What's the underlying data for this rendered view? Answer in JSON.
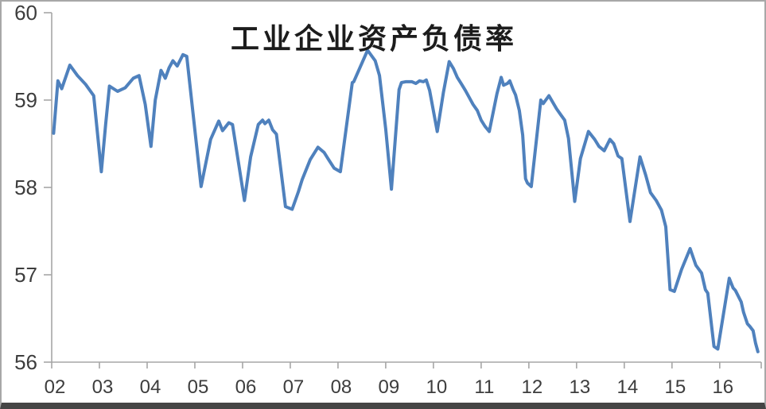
{
  "chart_data": {
    "type": "line",
    "title": "工业企业资产负债率",
    "xlabel": "",
    "ylabel": "",
    "xlim": [
      2002,
      2016.87
    ],
    "ylim": [
      56,
      60
    ],
    "y_ticks": [
      60,
      59,
      58,
      57,
      56
    ],
    "x_ticks": [
      2002,
      2003,
      2004,
      2005,
      2006,
      2007,
      2008,
      2009,
      2010,
      2011,
      2012,
      2013,
      2014,
      2015,
      2016
    ],
    "x_tick_labels": [
      "02",
      "03",
      "04",
      "05",
      "06",
      "07",
      "08",
      "09",
      "10",
      "11",
      "12",
      "13",
      "14",
      "15",
      "16"
    ],
    "grid": false,
    "legend": false,
    "line_color": "#4f81bd",
    "axis_color": "#a6a6a6",
    "tick_label_color": "#3d3d3d",
    "title_color": "#1c1c1c",
    "series": [
      {
        "name": "工业企业资产负债率",
        "x": [
          2002.04,
          2002.13,
          2002.21,
          2002.38,
          2002.54,
          2002.71,
          2002.88,
          2003.04,
          2003.13,
          2003.21,
          2003.38,
          2003.54,
          2003.71,
          2003.83,
          2003.96,
          2004.08,
          2004.17,
          2004.29,
          2004.38,
          2004.46,
          2004.54,
          2004.63,
          2004.75,
          2004.83,
          2005.13,
          2005.33,
          2005.5,
          2005.58,
          2005.71,
          2005.79,
          2006.04,
          2006.17,
          2006.33,
          2006.42,
          2006.47,
          2006.55,
          2006.63,
          2006.71,
          2006.9,
          2007.04,
          2007.17,
          2007.25,
          2007.42,
          2007.58,
          2007.71,
          2007.79,
          2007.92,
          2008.05,
          2008.3,
          2008.33,
          2008.62,
          2008.78,
          2008.87,
          2009.0,
          2009.12,
          2009.28,
          2009.33,
          2009.42,
          2009.55,
          2009.63,
          2009.71,
          2009.79,
          2009.85,
          2009.92,
          2010.08,
          2010.21,
          2010.33,
          2010.42,
          2010.5,
          2010.58,
          2010.67,
          2010.75,
          2010.83,
          2010.92,
          2011.0,
          2011.08,
          2011.17,
          2011.33,
          2011.42,
          2011.47,
          2011.55,
          2011.6,
          2011.67,
          2011.72,
          2011.8,
          2011.87,
          2011.93,
          2011.97,
          2012.05,
          2012.25,
          2012.3,
          2012.42,
          2012.58,
          2012.67,
          2012.75,
          2012.83,
          2012.96,
          2013.08,
          2013.25,
          2013.38,
          2013.47,
          2013.58,
          2013.7,
          2013.78,
          2013.87,
          2013.95,
          2014.12,
          2014.33,
          2014.45,
          2014.55,
          2014.67,
          2014.78,
          2014.87,
          2014.96,
          2015.05,
          2015.2,
          2015.38,
          2015.5,
          2015.62,
          2015.7,
          2015.75,
          2015.88,
          2015.96,
          2016.2,
          2016.28,
          2016.33,
          2016.45,
          2016.5,
          2016.58,
          2016.63,
          2016.7,
          2016.75,
          2016.8
        ],
        "y": [
          58.62,
          59.22,
          59.13,
          59.4,
          59.28,
          59.18,
          59.05,
          58.18,
          58.72,
          59.16,
          59.1,
          59.14,
          59.25,
          59.28,
          58.95,
          58.47,
          59.0,
          59.34,
          59.25,
          59.37,
          59.45,
          59.39,
          59.52,
          59.5,
          58.01,
          58.55,
          58.76,
          58.65,
          58.74,
          58.72,
          57.85,
          58.35,
          58.72,
          58.77,
          58.73,
          58.77,
          58.66,
          58.61,
          57.78,
          57.75,
          57.95,
          58.09,
          58.32,
          58.46,
          58.4,
          58.33,
          58.22,
          58.18,
          59.2,
          59.21,
          59.57,
          59.45,
          59.28,
          58.67,
          57.98,
          59.12,
          59.2,
          59.21,
          59.21,
          59.19,
          59.22,
          59.21,
          59.23,
          59.11,
          58.64,
          59.09,
          59.44,
          59.36,
          59.26,
          59.19,
          59.11,
          59.03,
          58.95,
          58.88,
          58.77,
          58.7,
          58.64,
          59.07,
          59.26,
          59.17,
          59.19,
          59.22,
          59.12,
          59.06,
          58.88,
          58.6,
          58.1,
          58.05,
          58.01,
          59.0,
          58.96,
          59.05,
          58.9,
          58.83,
          58.77,
          58.56,
          57.84,
          58.33,
          58.64,
          58.55,
          58.47,
          58.42,
          58.55,
          58.5,
          58.36,
          58.33,
          57.61,
          58.35,
          58.14,
          57.94,
          57.85,
          57.74,
          57.55,
          56.83,
          56.81,
          57.06,
          57.3,
          57.11,
          57.02,
          56.83,
          56.79,
          56.18,
          56.15,
          56.96,
          56.85,
          56.82,
          56.69,
          56.57,
          56.44,
          56.41,
          56.36,
          56.22,
          56.12
        ]
      }
    ]
  }
}
